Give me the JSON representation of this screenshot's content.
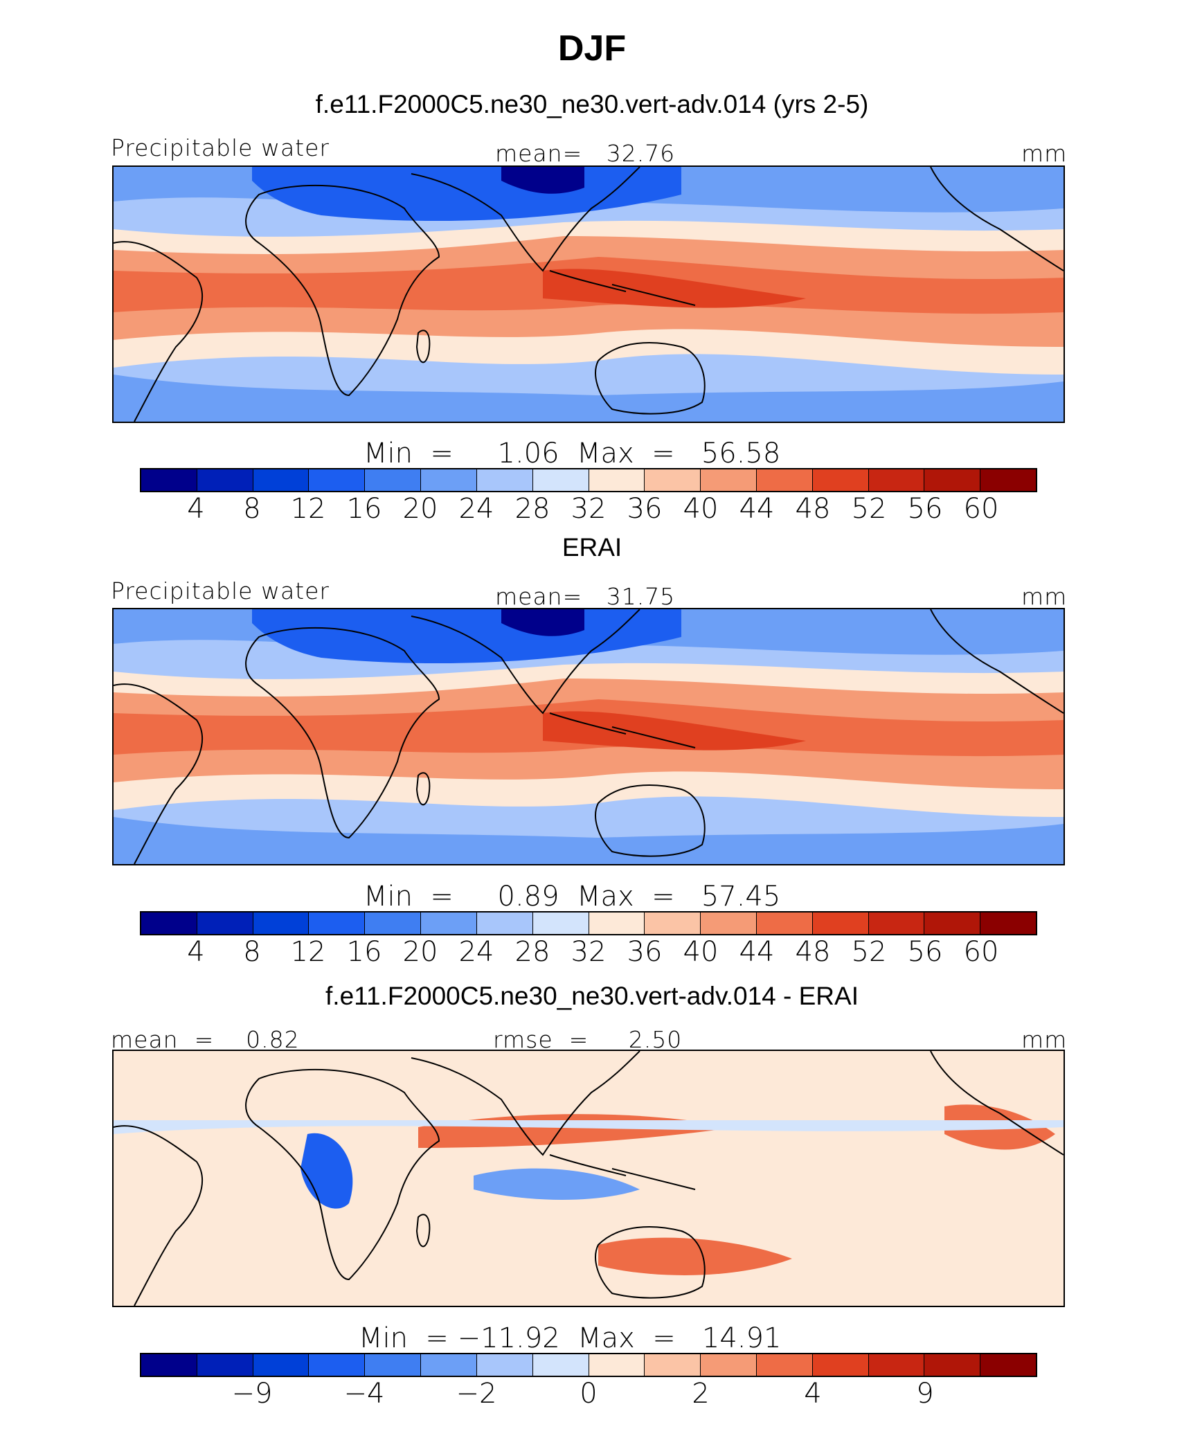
{
  "title": "DJF",
  "colors": {
    "abs_scale": [
      "#00008b",
      "#0020b8",
      "#0040d8",
      "#1c5ef0",
      "#3f7ef2",
      "#6c9ff6",
      "#a8c6fb",
      "#d3e4fc",
      "#fde9d8",
      "#fbc4a6",
      "#f59b76",
      "#ee6c46",
      "#e04020",
      "#c82612",
      "#b01608",
      "#8b0000"
    ],
    "diff_scale": [
      "#00008b",
      "#0020b8",
      "#0040d8",
      "#1c5ef0",
      "#3f7ef2",
      "#6c9ff6",
      "#a8c6fb",
      "#d3e4fc",
      "#fde9d8",
      "#fbc4a6",
      "#f59b76",
      "#ee6c46",
      "#e04020",
      "#c82612",
      "#b01608",
      "#8b0000"
    ],
    "coastline": "#000000"
  },
  "panels": [
    {
      "title": "f.e11.F2000C5.ne30_ne30.vert-adv.014 (yrs 2-5)",
      "left_label": "Precipitable water",
      "center_label": "mean=   32.76",
      "units": "mm",
      "minmax": "Min  =     1.06  Max  =   56.58",
      "ticks": [
        "4",
        "8",
        "12",
        "16",
        "20",
        "24",
        "28",
        "32",
        "36",
        "40",
        "44",
        "48",
        "52",
        "56",
        "60"
      ],
      "field": "abs"
    },
    {
      "title": "ERAI",
      "left_label": "Precipitable water",
      "center_label": "mean=   31.75",
      "units": "mm",
      "minmax": "Min  =     0.89  Max  =   57.45",
      "ticks": [
        "4",
        "8",
        "12",
        "16",
        "20",
        "24",
        "28",
        "32",
        "36",
        "40",
        "44",
        "48",
        "52",
        "56",
        "60"
      ],
      "field": "abs"
    },
    {
      "title": "f.e11.F2000C5.ne30_ne30.vert-adv.014 - ERAI",
      "left_label": "mean  =    0.82",
      "center_label": "rmse  =     2.50",
      "units": "mm",
      "minmax": "Min  = −11.92  Max  =   14.91",
      "ticks": [
        "−9",
        "−4",
        "−2",
        "0",
        "2",
        "4",
        "9"
      ],
      "field": "diff"
    }
  ]
}
